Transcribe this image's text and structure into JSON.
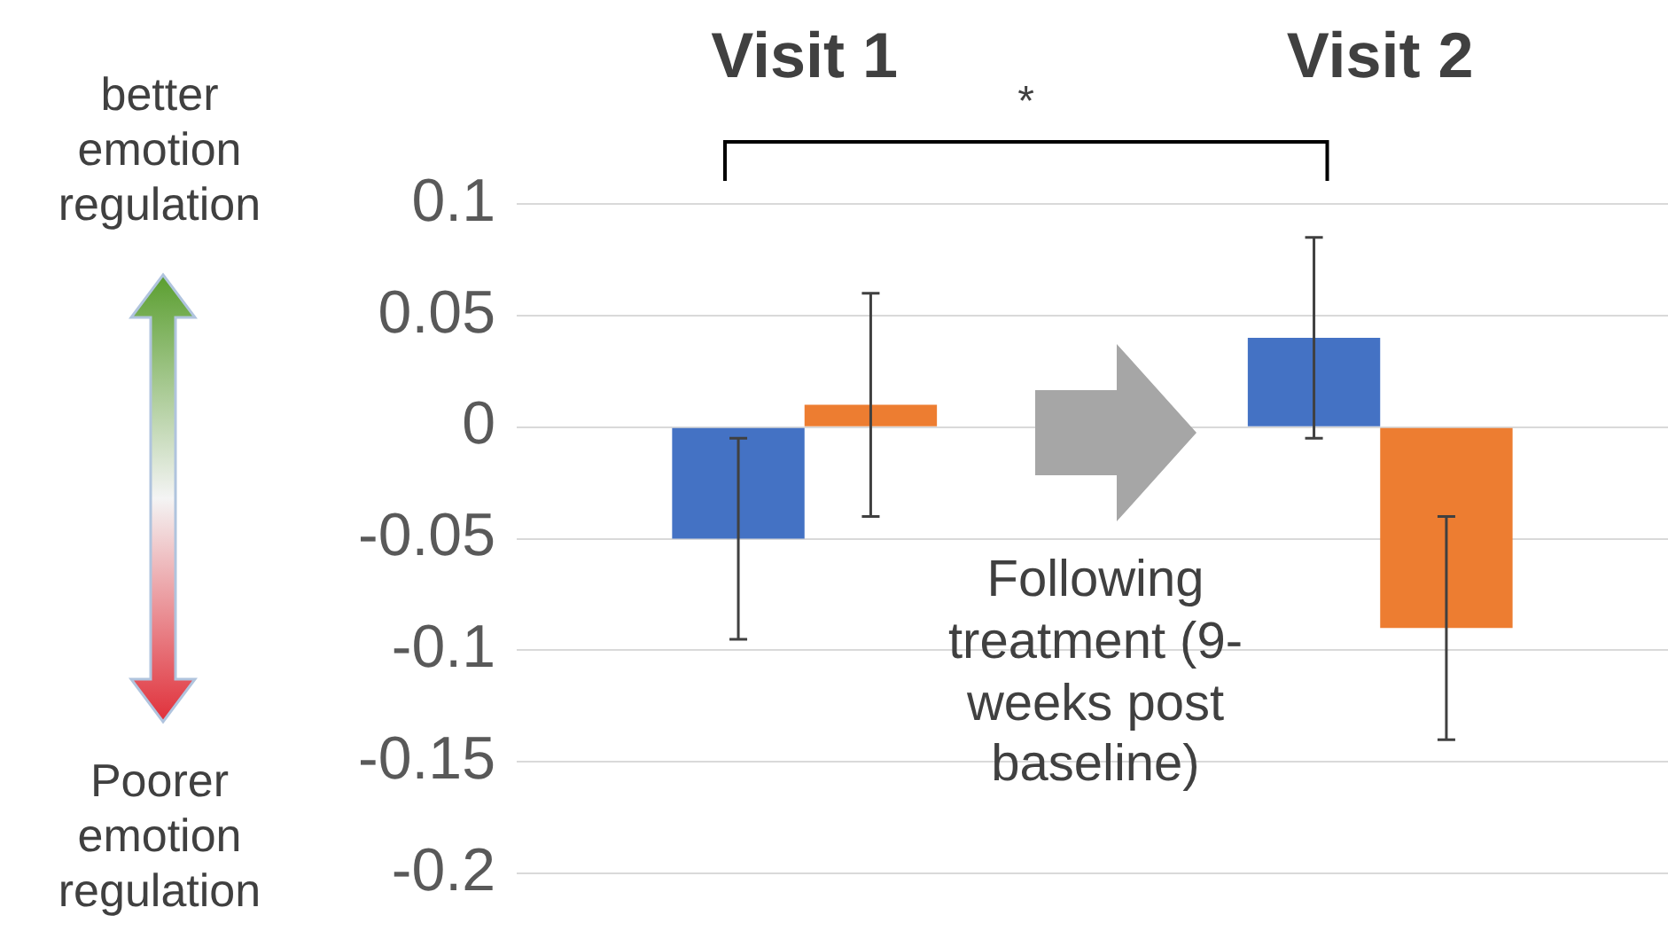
{
  "chart_data": {
    "type": "bar",
    "categories": [
      "Visit 1",
      "Visit 2"
    ],
    "series": [
      {
        "color": "#4472c4",
        "values": [
          -0.05,
          0.04
        ],
        "errors": [
          [
            -0.095,
            -0.005
          ],
          [
            -0.005,
            0.085
          ]
        ]
      },
      {
        "color": "#ed7d31",
        "values": [
          0.01,
          -0.09
        ],
        "errors": [
          [
            -0.04,
            0.06
          ],
          [
            -0.14,
            -0.04
          ]
        ]
      }
    ],
    "ylim": [
      -0.2,
      0.1
    ],
    "yticks": [
      -0.2,
      -0.15,
      -0.1,
      -0.05,
      0,
      0.05,
      0.1
    ],
    "grid": "y",
    "legend": false,
    "annotations": [
      "*",
      "Following treatment (9-weeks post baseline)",
      "better emotion regulation",
      "Poorer emotion regulation"
    ]
  }
}
